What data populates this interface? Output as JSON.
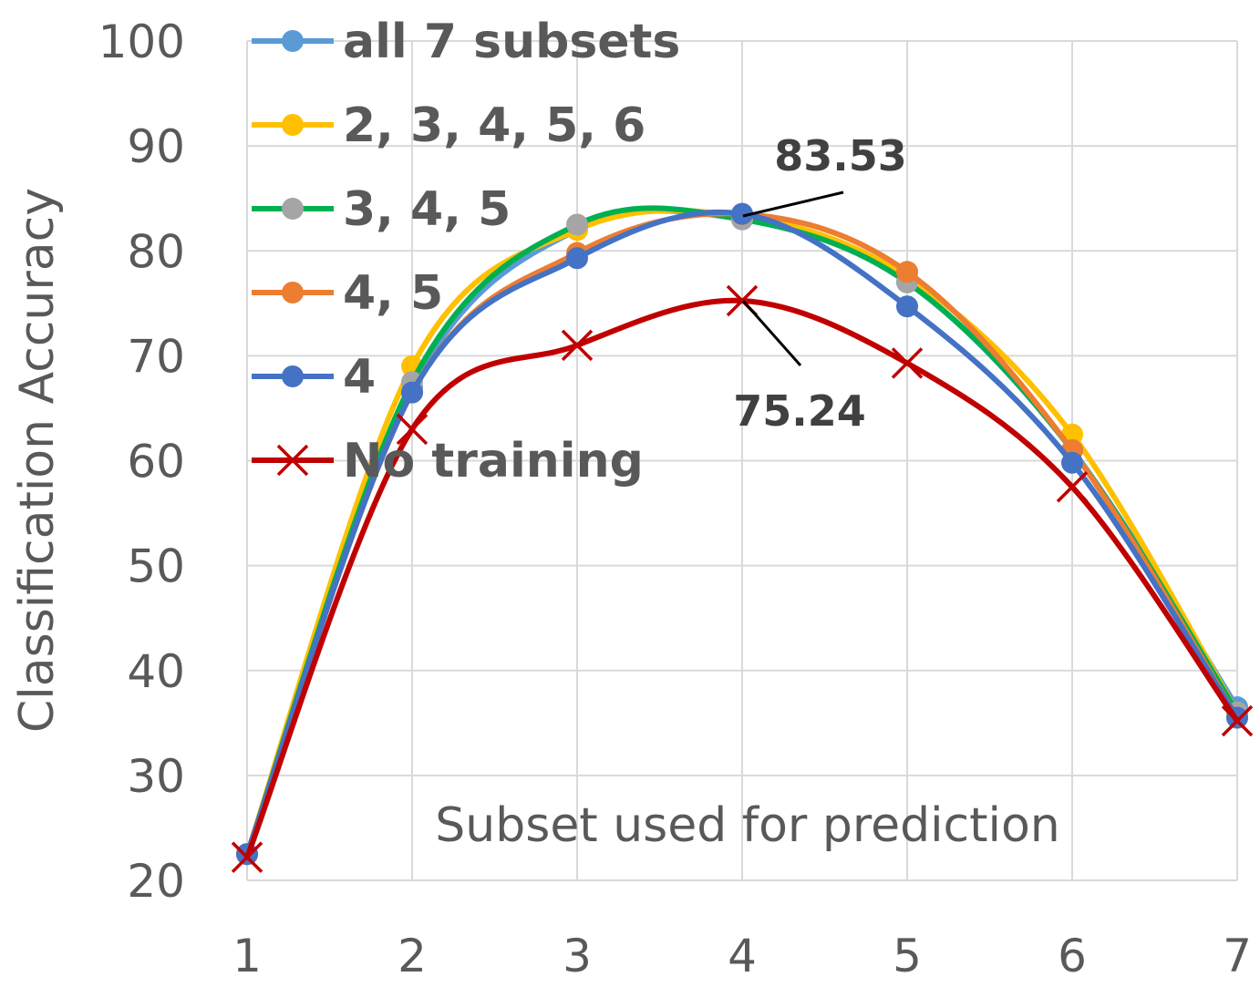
{
  "chart_data": {
    "type": "line",
    "title": "",
    "xlabel": "Subset used for prediction",
    "ylabel": "Classification Accuracy",
    "categories": [
      "1",
      "2",
      "3",
      "4",
      "5",
      "6",
      "7"
    ],
    "x": [
      1,
      2,
      3,
      4,
      5,
      6,
      7
    ],
    "ylim": [
      20,
      100
    ],
    "yticks": [
      "20",
      "30",
      "40",
      "50",
      "60",
      "70",
      "80",
      "90",
      "100"
    ],
    "grid": true,
    "smooth": true,
    "legend_placement": "top-left",
    "series": [
      {
        "name": "all 7 subsets",
        "color": "#5B9BD5",
        "marker": "circle",
        "values": [
          22.5,
          67.0,
          82.0,
          83.0,
          77.0,
          61.0,
          36.5
        ]
      },
      {
        "name": "2, 3, 4, 5, 6",
        "color": "#FFC000",
        "marker": "circle",
        "values": [
          22.5,
          69.0,
          82.0,
          83.3,
          77.5,
          62.5,
          36.0
        ]
      },
      {
        "name": "3, 4, 5",
        "color": "#00B050",
        "marker": "circle",
        "marker_color": "#A5A5A5",
        "values": [
          22.5,
          67.5,
          82.5,
          83.0,
          77.0,
          61.0,
          36.0
        ]
      },
      {
        "name": "4, 5",
        "color": "#ED7D31",
        "marker": "circle",
        "values": [
          22.5,
          66.5,
          79.8,
          83.5,
          78.0,
          61.0,
          35.5
        ]
      },
      {
        "name": "4",
        "color": "#4472C4",
        "marker": "circle",
        "values": [
          22.5,
          66.5,
          79.3,
          83.53,
          74.7,
          59.8,
          35.5
        ]
      },
      {
        "name": "No training",
        "color": "#C00000",
        "marker": "x",
        "values": [
          22.2,
          63.0,
          71.0,
          75.24,
          69.3,
          57.5,
          35.2
        ]
      }
    ],
    "annotations": [
      {
        "text": "83.53",
        "x": 4,
        "y": 83.53
      },
      {
        "text": "75.24",
        "x": 4,
        "y": 75.24
      }
    ]
  }
}
